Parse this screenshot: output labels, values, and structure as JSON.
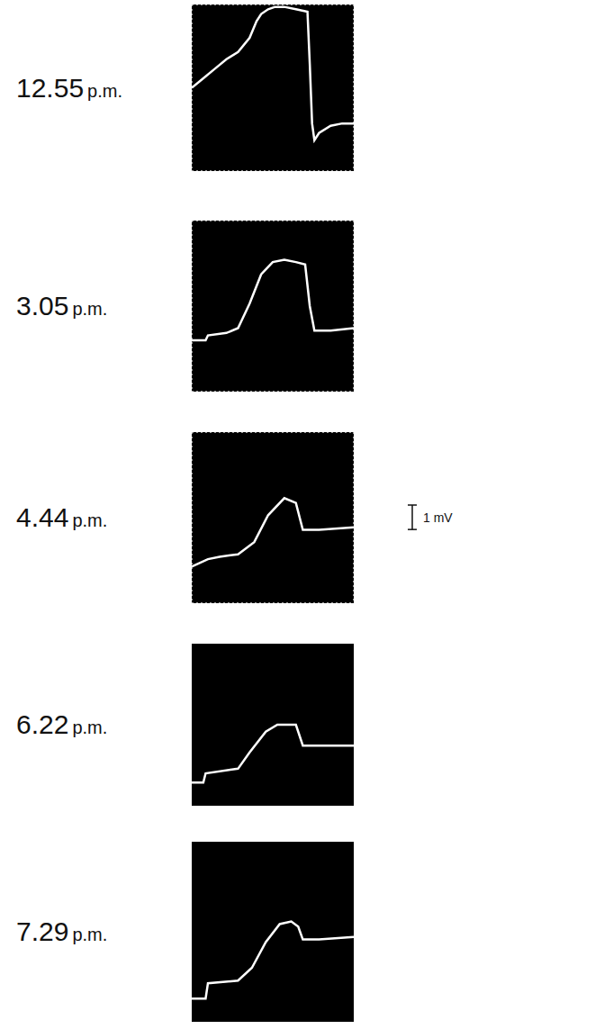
{
  "chart_data": [
    {
      "type": "line",
      "title": "12.55 p.m.",
      "color": "#ffffff",
      "grid": true,
      "tick_labels": false,
      "xlim": [
        0,
        7
      ],
      "ylim": [
        0,
        7
      ],
      "xticks": [
        0,
        1,
        2,
        3,
        4,
        5,
        6,
        7
      ],
      "yticks": [
        0,
        1,
        2,
        3,
        4,
        5,
        6,
        7
      ],
      "x": [
        0,
        0.5,
        1,
        1.5,
        2,
        2.5,
        2.8,
        3,
        3.3,
        3.6,
        4,
        4.5,
        5,
        5.1,
        5.2,
        5.3,
        5.5,
        6,
        6.5,
        7
      ],
      "values": [
        3.5,
        3.9,
        4.3,
        4.7,
        5.0,
        5.6,
        6.3,
        6.6,
        6.8,
        6.9,
        6.9,
        6.8,
        6.7,
        4.5,
        2.0,
        1.3,
        1.6,
        1.9,
        2.0,
        2.0
      ]
    },
    {
      "type": "line",
      "title": "3.05 p.m.",
      "color": "#ffffff",
      "grid": true,
      "tick_labels": false,
      "xlim": [
        0,
        7
      ],
      "ylim": [
        0,
        7
      ],
      "xticks": [
        0,
        1,
        2,
        3,
        4,
        5,
        6,
        7
      ],
      "yticks": [
        0,
        1,
        2,
        3,
        4,
        5,
        6,
        7
      ],
      "x": [
        0,
        0.6,
        0.7,
        1.5,
        2,
        2.5,
        3,
        3.5,
        4,
        4.5,
        4.9,
        5.1,
        5.3,
        6,
        7
      ],
      "values": [
        2.1,
        2.1,
        2.3,
        2.4,
        2.6,
        3.6,
        4.8,
        5.3,
        5.4,
        5.3,
        5.2,
        3.5,
        2.5,
        2.5,
        2.6
      ]
    },
    {
      "type": "line",
      "title": "4.44 p.m.",
      "color": "#ffffff",
      "grid": true,
      "tick_labels": false,
      "xlim": [
        0,
        7
      ],
      "ylim": [
        0,
        7
      ],
      "xticks": [
        0,
        1,
        2,
        3,
        4,
        5,
        6,
        7
      ],
      "yticks": [
        0,
        1,
        2,
        3,
        4,
        5,
        6,
        7
      ],
      "x": [
        0,
        0.7,
        1.2,
        2,
        2.7,
        3.3,
        4,
        4.5,
        4.8,
        5.5,
        7
      ],
      "values": [
        1.5,
        1.8,
        1.9,
        2.0,
        2.5,
        3.6,
        4.3,
        4.1,
        3.0,
        3.0,
        3.1
      ],
      "scale_bar": {
        "value": 1,
        "label": "1 mV"
      }
    },
    {
      "type": "line",
      "title": "6.22 p.m.",
      "color": "#ffffff",
      "grid": false,
      "tick_labels": false,
      "xlim": [
        0,
        7
      ],
      "ylim": [
        0,
        7
      ],
      "xticks": [
        0,
        1,
        2,
        3,
        4,
        5,
        6,
        7
      ],
      "yticks": [
        0,
        1,
        2,
        3,
        4,
        5,
        6,
        7
      ],
      "x": [
        0,
        0.5,
        0.6,
        2,
        2.5,
        3.2,
        3.7,
        4.5,
        4.8,
        5.5,
        7
      ],
      "values": [
        1.0,
        1.0,
        1.4,
        1.6,
        2.3,
        3.2,
        3.5,
        3.5,
        2.6,
        2.6,
        2.6
      ]
    },
    {
      "type": "line",
      "title": "7.29 p.m.",
      "color": "#ffffff",
      "grid": false,
      "tick_labels": false,
      "xlim": [
        0,
        7
      ],
      "ylim": [
        0,
        7
      ],
      "xticks": [
        0,
        1,
        2,
        3,
        4,
        5,
        6,
        7
      ],
      "yticks": [
        0,
        1,
        2,
        3,
        4,
        5,
        6,
        7
      ],
      "x": [
        0,
        0.6,
        0.7,
        2,
        2.6,
        3.2,
        3.8,
        4.3,
        4.6,
        4.8,
        5.5,
        7
      ],
      "values": [
        0.9,
        0.9,
        1.5,
        1.6,
        2.1,
        3.1,
        3.8,
        3.9,
        3.7,
        3.2,
        3.2,
        3.3
      ]
    }
  ]
}
